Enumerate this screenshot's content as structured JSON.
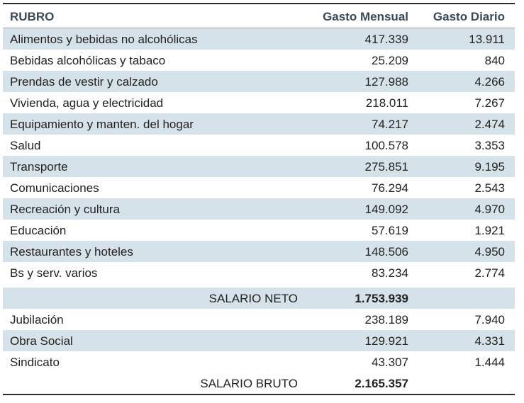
{
  "header": {
    "col1": "RUBRO",
    "col2": "Gasto Mensual",
    "col3": "Gasto Diario"
  },
  "rows": [
    {
      "rubro": "Alimentos y bebidas no alcohólicas",
      "mensual": "417.339",
      "diario": "13.911"
    },
    {
      "rubro": "Bebidas alcohólicas y tabaco",
      "mensual": "25.209",
      "diario": "840"
    },
    {
      "rubro": "Prendas de vestir y calzado",
      "mensual": "127.988",
      "diario": "4.266"
    },
    {
      "rubro": "Vivienda, agua y electricidad",
      "mensual": "218.011",
      "diario": "7.267"
    },
    {
      "rubro": "Equipamiento y manten. del hogar",
      "mensual": "74.217",
      "diario": "2.474"
    },
    {
      "rubro": "Salud",
      "mensual": "100.578",
      "diario": "3.353"
    },
    {
      "rubro": "Transporte",
      "mensual": "275.851",
      "diario": "9.195"
    },
    {
      "rubro": "Comunicaciones",
      "mensual": "76.294",
      "diario": "2.543"
    },
    {
      "rubro": "Recreación y cultura",
      "mensual": "149.092",
      "diario": "4.970"
    },
    {
      "rubro": "Educación",
      "mensual": "57.619",
      "diario": "1.921"
    },
    {
      "rubro": "Restaurantes y hoteles",
      "mensual": "148.506",
      "diario": "4.950"
    },
    {
      "rubro": "Bs y serv. varios",
      "mensual": "83.234",
      "diario": "2.774"
    }
  ],
  "salario_neto": {
    "label": "SALARIO NETO",
    "value": "1.753.939"
  },
  "deducciones": [
    {
      "rubro": "Jubilación",
      "mensual": "238.189",
      "diario": "7.940"
    },
    {
      "rubro": "Obra Social",
      "mensual": "129.921",
      "diario": "4.331"
    },
    {
      "rubro": "Sindicato",
      "mensual": "43.307",
      "diario": "1.444"
    }
  ],
  "salario_bruto": {
    "label": "SALARIO BRUTO",
    "value": "2.165.357"
  }
}
